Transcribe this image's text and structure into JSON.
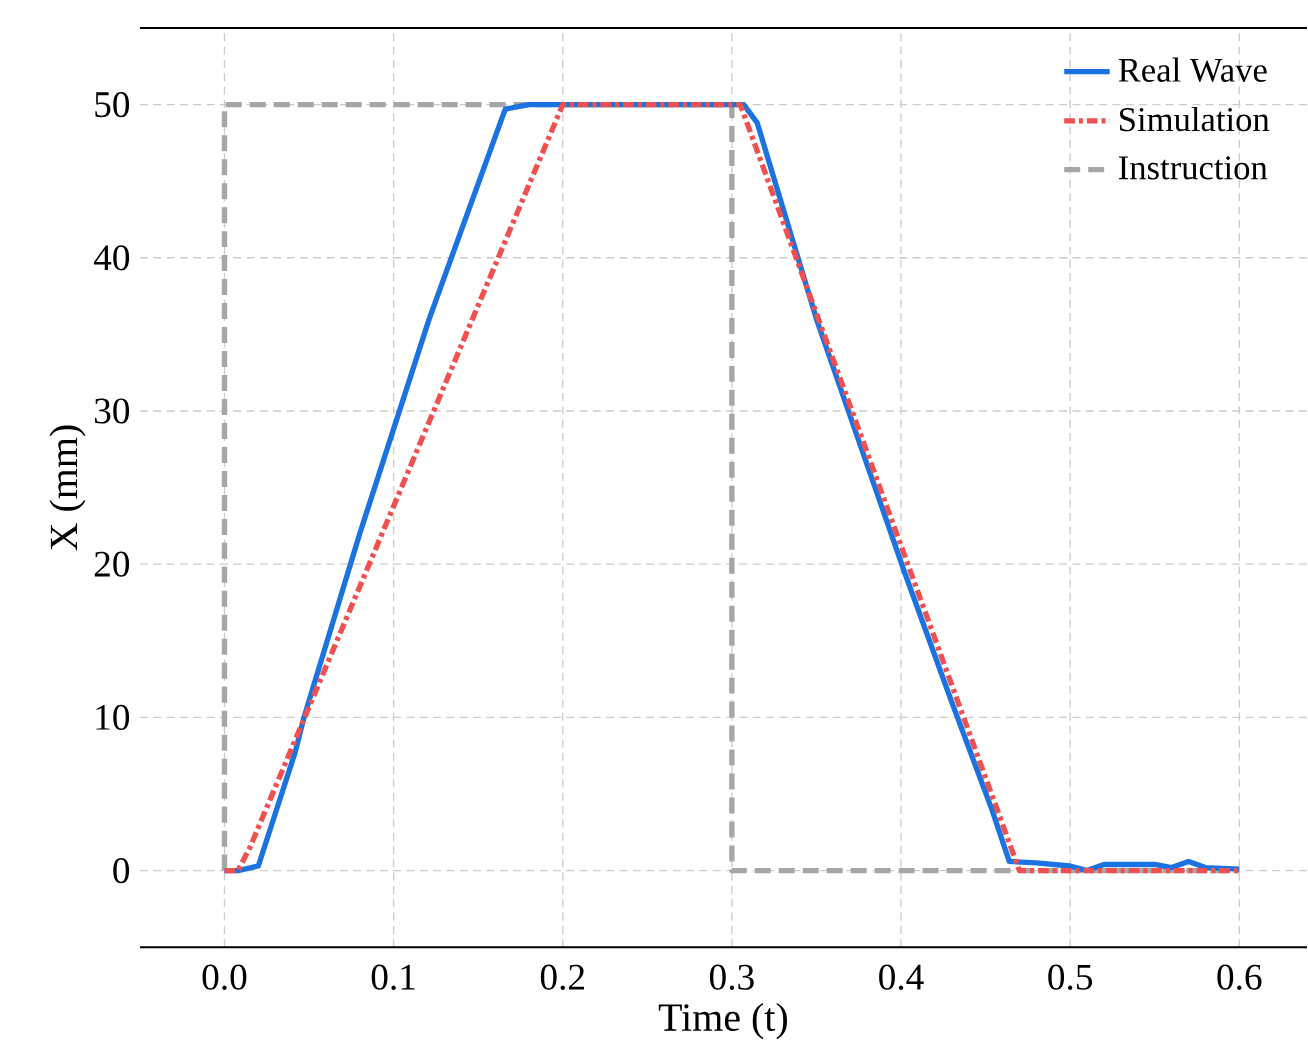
{
  "chart_data": {
    "type": "line",
    "xlabel": "Time  (t)",
    "ylabel": "X  (mm)",
    "xlim": [
      -0.05,
      0.64
    ],
    "ylim": [
      -5,
      55
    ],
    "xticks": [
      {
        "value": 0,
        "label": "0.0"
      },
      0.1,
      0.2,
      0.3,
      0.4,
      0.5,
      0.6
    ],
    "yticks": [
      0,
      10,
      20,
      30,
      40,
      50
    ],
    "grid": true,
    "legend": "top right",
    "series": [
      {
        "name": "Real Wave",
        "color": "#1a73e0",
        "line_style": "solid",
        "x": [
          0,
          0.008,
          0.02,
          0.042,
          0.047,
          0.08,
          0.121,
          0.166,
          0.18,
          0.2,
          0.25,
          0.307,
          0.315,
          0.35,
          0.402,
          0.43,
          0.454,
          0.464,
          0.48,
          0.5,
          0.51,
          0.52,
          0.55,
          0.56,
          0.57,
          0.58,
          0.6
        ],
        "values": [
          0,
          0,
          0.3,
          7.8,
          10,
          22,
          36,
          49.7,
          50,
          50,
          50,
          50,
          48.8,
          36,
          19.5,
          11,
          3.9,
          0.6,
          0.5,
          0.3,
          0,
          0.4,
          0.4,
          0.2,
          0.6,
          0.2,
          0.1
        ]
      },
      {
        "name": "Simulation",
        "color": "#f05050",
        "line_style": "dashdot",
        "x": [
          0,
          0.008,
          0.015,
          0.2,
          0.3,
          0.305,
          0.47,
          0.6
        ],
        "values": [
          0,
          0,
          1.5,
          50,
          50,
          50,
          0,
          0
        ]
      },
      {
        "name": "Instruction",
        "color": "#a6a6a6",
        "line_style": "dashed",
        "x": [
          0,
          0,
          0.3,
          0.3,
          0.6
        ],
        "values": [
          0,
          50,
          50,
          0,
          0
        ]
      }
    ]
  }
}
